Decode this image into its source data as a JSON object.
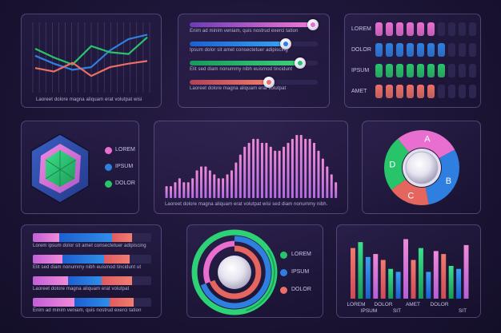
{
  "colors": {
    "pink": "#e86fd0",
    "blue": "#2f7fe0",
    "green": "#28c46a",
    "salmon": "#ea7066",
    "violet": "#a96ee0",
    "empty": "#2d2650"
  },
  "panels": {
    "line_chart": {
      "caption": "Laoreet dolore magna aliquam erat volutpat wisi"
    },
    "sliders": [
      {
        "caption": "Enim ad minim veniam, quis nostrud exerci tation",
        "value": 0.96,
        "color": "pink",
        "fill_from": "#6b3bb5",
        "fill_to": "#ee7ad6"
      },
      {
        "caption": "Ipsum dolor sit amet consectetuer adipiscing",
        "value": 0.75,
        "color": "blue",
        "fill_from": "#1d5fd1",
        "fill_to": "#35a3f0"
      },
      {
        "caption": "Elit sed diam nonummy nibh euismod tincidunt",
        "value": 0.86,
        "color": "green",
        "fill_from": "#18995a",
        "fill_to": "#3ad07c"
      },
      {
        "caption": "Laoreet dolore magna aliquam erat volutpat",
        "value": 0.62,
        "color": "salmon",
        "fill_from": "#b04258",
        "fill_to": "#f07a6a"
      }
    ],
    "level_meters": [
      {
        "label": "LOREM",
        "level": 6,
        "color": "pink"
      },
      {
        "label": "DOLOR",
        "level": 7,
        "color": "blue"
      },
      {
        "label": "IPSUM",
        "level": 7,
        "color": "green"
      },
      {
        "label": "AMET",
        "level": 6,
        "color": "salmon"
      }
    ],
    "level_max": 10,
    "hexagon_legend": [
      "LOREM",
      "IPSUM",
      "DOLOR"
    ],
    "area_chart": {
      "caption": "Laoreet dolore magna aliquam erat volutpat wisi sed diam nonummy nibh."
    },
    "donut_labels": [
      "A",
      "B",
      "C",
      "D"
    ],
    "progress_rows": [
      {
        "caption": "Lorem ipsum dolor sit amet consectetuer adipiscing",
        "pink": 0.22,
        "blue": 0.45,
        "salmon": 0.17
      },
      {
        "caption": "Elit sed diam nonummy nibh euismod tincidunt ut",
        "pink": 0.25,
        "blue": 0.35,
        "salmon": 0.22
      },
      {
        "caption": "Laoreet dolore magna aliquam erat volutpat",
        "pink": 0.3,
        "blue": 0.28,
        "salmon": 0.26
      },
      {
        "caption": "Enim ad minim veniam, quis nostrud exerci tation",
        "pink": 0.35,
        "blue": 0.3,
        "salmon": 0.2
      }
    ],
    "ring_legend": [
      "LOREM",
      "IPSUM",
      "DOLOR"
    ],
    "bar_labels_top": [
      "LOREM",
      "DOLOR",
      "AMET",
      "DOLOR"
    ],
    "bar_labels_bottom": [
      "IPSUM",
      "SIT",
      "SIT"
    ]
  },
  "chart_data": [
    {
      "type": "line",
      "x": [
        1,
        2,
        3,
        4,
        5,
        6,
        7
      ],
      "series": [
        {
          "color": "blue",
          "values": [
            4.2,
            3.3,
            2.6,
            2.9,
            4.8,
            6.1,
            6.6
          ]
        },
        {
          "color": "green",
          "values": [
            5.0,
            4.0,
            3.2,
            5.3,
            4.6,
            4.4,
            6.3
          ]
        },
        {
          "color": "salmon",
          "values": [
            2.8,
            2.4,
            3.4,
            1.9,
            2.9,
            3.3,
            3.6
          ]
        }
      ],
      "ylim": [
        0,
        8
      ],
      "grid": true
    },
    {
      "type": "bar",
      "values": [
        3,
        3,
        4,
        5,
        4,
        4,
        5,
        7,
        8,
        8,
        7,
        6,
        5,
        5,
        6,
        7,
        9,
        11,
        13,
        14,
        15,
        15,
        14,
        14,
        13,
        12,
        12,
        13,
        14,
        15,
        16,
        16,
        15,
        15,
        14,
        12,
        10,
        8,
        6,
        4
      ],
      "ylim": [
        0,
        17
      ]
    },
    {
      "type": "pie",
      "categories": [
        "A",
        "B",
        "C",
        "D"
      ],
      "values": [
        28,
        30,
        18,
        24
      ]
    },
    {
      "type": "bar",
      "series": [
        {
          "color": "salmon",
          "values": [
            8.5,
            6.5,
            6.5,
            7.5
          ]
        },
        {
          "color": "green",
          "values": [
            9.5,
            5.0,
            8.5,
            5.5
          ]
        },
        {
          "color": "blue",
          "values": [
            7.0,
            4.5,
            4.5,
            5.0
          ]
        },
        {
          "color": "pink",
          "values": [
            7.5,
            10.0,
            8.0,
            9.0
          ]
        }
      ],
      "ylim": [
        0,
        11
      ]
    }
  ]
}
